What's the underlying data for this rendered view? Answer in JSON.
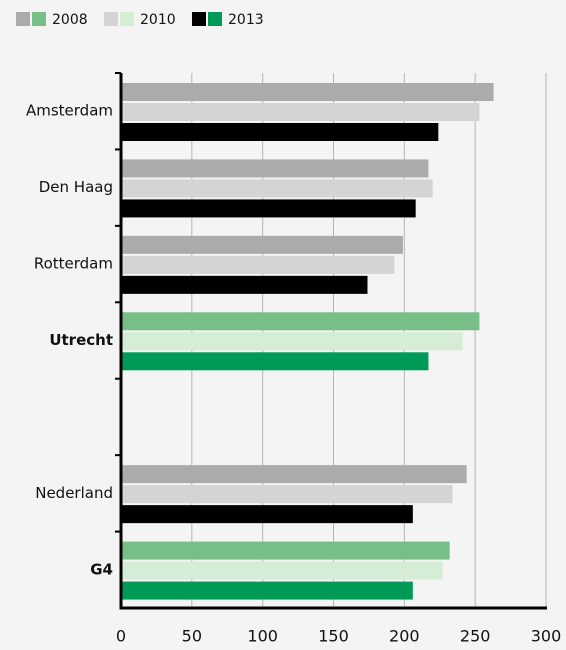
{
  "chart_data": {
    "type": "hbar",
    "categories": [
      "Amsterdam",
      "Den Haag",
      "Rotterdam",
      "Utrecht",
      null,
      "Nederland",
      "G4"
    ],
    "highlight": [
      false,
      false,
      false,
      true,
      false,
      false,
      true
    ],
    "highlight_label_color": "#17984e",
    "series": [
      {
        "name": "2008",
        "color": "#ababab",
        "highlight_color": "#77bf87",
        "values": [
          263,
          217,
          199,
          253,
          null,
          244,
          232
        ]
      },
      {
        "name": "2010",
        "color": "#d4d4d4",
        "highlight_color": "#d5ecd5",
        "values": [
          253,
          220,
          193,
          241,
          null,
          234,
          227
        ]
      },
      {
        "name": "2013",
        "color": "#000000",
        "highlight_color": "#009a57",
        "values": [
          224,
          208,
          174,
          217,
          null,
          206,
          206
        ]
      }
    ],
    "xlim": [
      0,
      300
    ],
    "xticks": [
      0,
      50,
      100,
      150,
      200,
      250,
      300
    ],
    "grid": true
  }
}
